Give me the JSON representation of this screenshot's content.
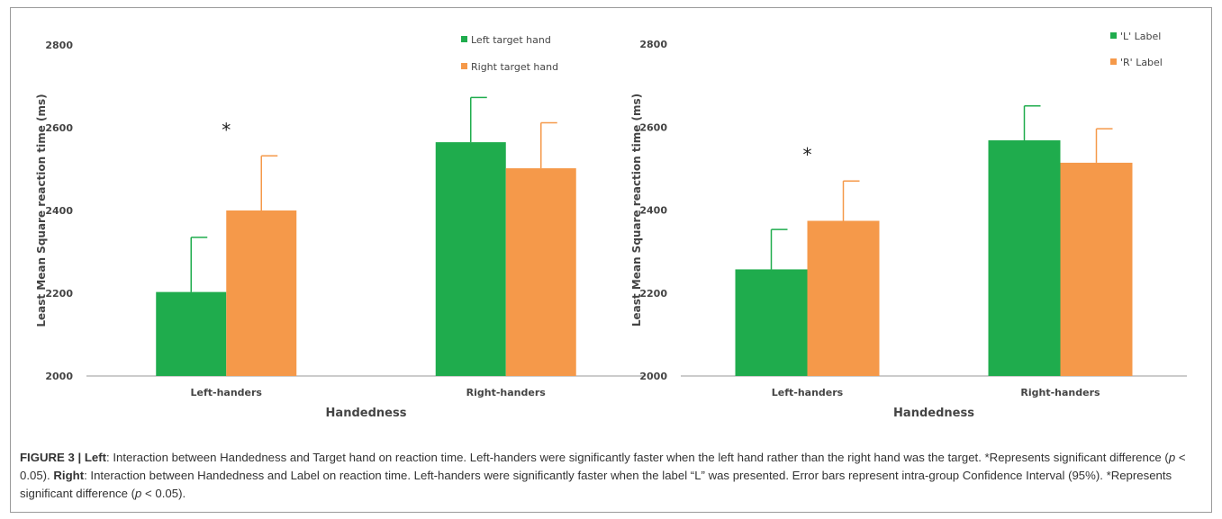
{
  "caption": {
    "figure_label": "FIGURE 3 |",
    "left_bold": "Left",
    "part1": ": Interaction between Handedness and Target hand on reaction time. Left-handers were significantly faster when the left hand rather than the right hand was the target. *Represents significant difference (",
    "p1": "p",
    "part2": " < 0.05). ",
    "right_bold": "Right",
    "part3": ": Interaction between Handedness and Label on reaction time. Left-handers were significantly faster when the label “L” was presented. Error bars represent intra-group Confidence Interval (95%). *Represents significant difference (",
    "p2": "p",
    "part4": " < 0.05)."
  },
  "colors": {
    "series1": "#1fac4d",
    "series2": "#f5994a",
    "axis": "#999999",
    "text": "#444444"
  },
  "chart_data": [
    {
      "type": "bar",
      "categories": [
        "Left-handers",
        "Right-handers"
      ],
      "series": [
        {
          "name": "Left target hand",
          "values": [
            2203,
            2565
          ],
          "err_upper": [
            2335,
            2673
          ]
        },
        {
          "name": "Right target hand",
          "values": [
            2400,
            2502
          ],
          "err_upper": [
            2532,
            2612
          ]
        }
      ],
      "xlabel": "Handedness",
      "ylabel": "Least Mean Square reaction time (ms)",
      "ylim": [
        2000,
        2800
      ],
      "yticks": [
        "2000",
        "2200",
        "2400",
        "2600",
        "2800"
      ],
      "annotations": [
        {
          "text": "*",
          "category": "Left-handers"
        }
      ],
      "legend": "top-right",
      "grid": false
    },
    {
      "type": "bar",
      "categories": [
        "Left-handers",
        "Right-handers"
      ],
      "series": [
        {
          "name": "'L' Label",
          "values": [
            2257,
            2568
          ],
          "err_upper": [
            2353,
            2651
          ]
        },
        {
          "name": "'R' Label",
          "values": [
            2374,
            2514
          ],
          "err_upper": [
            2470,
            2596
          ]
        }
      ],
      "xlabel": "Handedness",
      "ylabel": "Least Mean Square reaction time (ms)",
      "ylim": [
        2000,
        2800
      ],
      "yticks": [
        "2000",
        "2200",
        "2400",
        "2600",
        "2800"
      ],
      "annotations": [
        {
          "text": "*",
          "category": "Left-handers"
        }
      ],
      "legend": "top-right",
      "grid": false
    }
  ]
}
